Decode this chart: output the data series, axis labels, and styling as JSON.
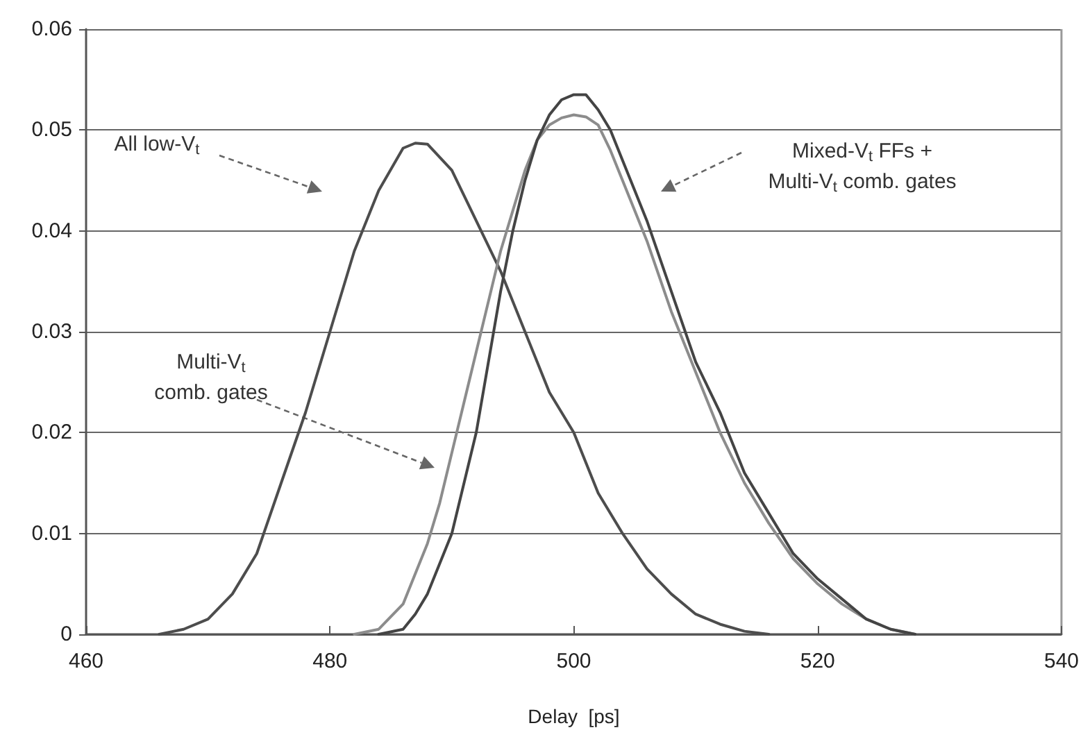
{
  "chart_data": {
    "type": "line",
    "xlabel": "Delay  [ps]",
    "xlim": [
      460,
      540
    ],
    "xticks": [
      460,
      480,
      500,
      520,
      540
    ],
    "ylim": [
      0,
      0.06
    ],
    "yticks": [
      0,
      0.01,
      0.02,
      0.03,
      0.04,
      0.05,
      0.06
    ],
    "grid": "y",
    "marker": "none",
    "line_style": "solid",
    "series": [
      {
        "color": "#4d4d4d",
        "x": [
          466,
          468,
          470,
          472,
          474,
          476,
          478,
          480,
          482,
          484,
          486,
          487,
          488,
          490,
          492,
          494,
          496,
          498,
          500,
          502,
          504,
          506,
          508,
          510,
          512,
          514,
          516
        ],
        "values": [
          0,
          0.0005,
          0.0015,
          0.004,
          0.008,
          0.015,
          0.022,
          0.03,
          0.038,
          0.044,
          0.0482,
          0.0487,
          0.0486,
          0.046,
          0.041,
          0.036,
          0.03,
          0.024,
          0.02,
          0.014,
          0.01,
          0.0065,
          0.004,
          0.002,
          0.001,
          0.0003,
          0
        ]
      },
      {
        "color": "#8c8c8c",
        "x": [
          482,
          484,
          486,
          487,
          488,
          489,
          490,
          491,
          492,
          493,
          494,
          495,
          496,
          497,
          498,
          499,
          500,
          501,
          502,
          503,
          504,
          505,
          506,
          508,
          510,
          512,
          514,
          516,
          518,
          520,
          522,
          524,
          526,
          528
        ],
        "values": [
          0,
          0.0005,
          0.003,
          0.006,
          0.009,
          0.013,
          0.018,
          0.023,
          0.028,
          0.033,
          0.038,
          0.042,
          0.046,
          0.049,
          0.0505,
          0.0512,
          0.0515,
          0.0513,
          0.0505,
          0.048,
          0.045,
          0.042,
          0.039,
          0.032,
          0.026,
          0.02,
          0.015,
          0.011,
          0.0075,
          0.005,
          0.003,
          0.0015,
          0.0005,
          0
        ]
      },
      {
        "color": "#444444",
        "x": [
          484,
          486,
          487,
          488,
          489,
          490,
          491,
          492,
          493,
          494,
          495,
          496,
          497,
          498,
          499,
          500,
          501,
          502,
          503,
          504,
          505,
          506,
          508,
          510,
          512,
          514,
          516,
          518,
          520,
          522,
          524,
          526,
          528
        ],
        "values": [
          0,
          0.0005,
          0.002,
          0.004,
          0.007,
          0.01,
          0.015,
          0.02,
          0.027,
          0.034,
          0.04,
          0.045,
          0.049,
          0.0515,
          0.053,
          0.0535,
          0.0535,
          0.052,
          0.05,
          0.047,
          0.044,
          0.041,
          0.034,
          0.027,
          0.022,
          0.016,
          0.012,
          0.008,
          0.0055,
          0.0035,
          0.0015,
          0.0005,
          0
        ]
      }
    ],
    "annotations": [
      "All low-V$_{t}$",
      "Multi-V$_{t}$\ncomb. gates",
      "Mixed-V$_{t}$ FFs +\nMulti-V$_{t}$ comb. gates"
    ]
  }
}
